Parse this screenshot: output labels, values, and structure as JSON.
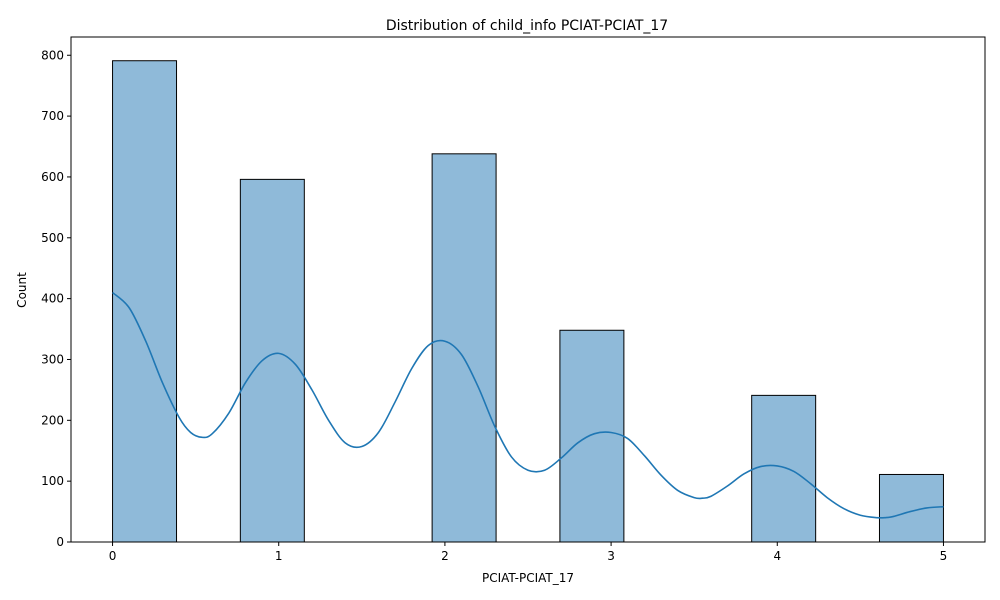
{
  "colors": {
    "bar_fill": "#8fbad9",
    "bar_edge": "#000000",
    "kde_line": "#1f77b4"
  },
  "chart_data": {
    "type": "bar",
    "title": "Distribution of child_info PCIAT-PCIAT_17",
    "xlabel": "PCIAT-PCIAT_17",
    "ylabel": "Count",
    "xlim": [
      -0.25,
      5.25
    ],
    "ylim": [
      0,
      830
    ],
    "xticks": [
      0,
      1,
      2,
      3,
      4,
      5
    ],
    "yticks": [
      0,
      100,
      200,
      300,
      400,
      500,
      600,
      700,
      800
    ],
    "grid": false,
    "legend": null,
    "bins": [
      {
        "start": 0.0,
        "end": 0.385,
        "count": 791
      },
      {
        "start": 0.769,
        "end": 1.154,
        "count": 596
      },
      {
        "start": 1.923,
        "end": 2.308,
        "count": 638
      },
      {
        "start": 2.692,
        "end": 3.077,
        "count": 348
      },
      {
        "start": 3.846,
        "end": 4.231,
        "count": 241
      },
      {
        "start": 4.615,
        "end": 5.0,
        "count": 111
      }
    ],
    "kde": {
      "x": [
        0.0,
        0.1,
        0.2,
        0.3,
        0.4,
        0.47,
        0.54,
        0.6,
        0.7,
        0.8,
        0.9,
        1.0,
        1.1,
        1.2,
        1.3,
        1.4,
        1.5,
        1.6,
        1.7,
        1.8,
        1.9,
        2.0,
        2.1,
        2.2,
        2.3,
        2.4,
        2.5,
        2.6,
        2.7,
        2.8,
        2.9,
        3.0,
        3.1,
        3.2,
        3.3,
        3.4,
        3.5,
        3.55,
        3.6,
        3.7,
        3.8,
        3.9,
        4.0,
        4.1,
        4.2,
        4.3,
        4.4,
        4.5,
        4.6,
        4.65,
        4.7,
        4.8,
        4.9,
        5.0
      ],
      "y": [
        410,
        385,
        330,
        262,
        205,
        180,
        172,
        178,
        212,
        262,
        298,
        310,
        292,
        250,
        200,
        163,
        157,
        180,
        230,
        285,
        323,
        330,
        308,
        255,
        190,
        140,
        118,
        118,
        138,
        163,
        178,
        180,
        170,
        142,
        110,
        85,
        73,
        72,
        75,
        92,
        112,
        124,
        125,
        116,
        96,
        73,
        55,
        44,
        40,
        40,
        42,
        50,
        56,
        58
      ]
    }
  }
}
